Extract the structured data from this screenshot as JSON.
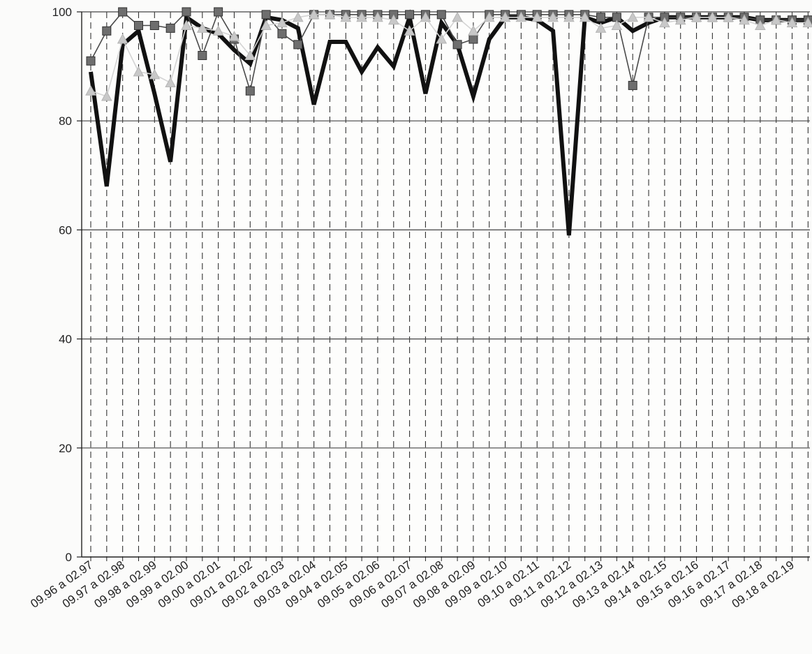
{
  "chart_data": {
    "type": "line",
    "title": "",
    "xlabel": "",
    "ylabel": "",
    "ylim": [
      0,
      100
    ],
    "yticks": [
      "0",
      "20",
      "40",
      "60",
      "80",
      "100"
    ],
    "grid": {
      "horizontal": "solid",
      "vertical": "dashed"
    },
    "x_axis_tick_labels": [
      "09.96 a 02.97",
      "09.97 a 02.98",
      "09.98 a 02.99",
      "09.99 a 02.00",
      "09.00 a 02.01",
      "09.01 a 02.02",
      "09.02 a 02.03",
      "09.03 a 02.04",
      "09.04 a 02.05",
      "09.05 a 02.06",
      "09.06 a 02.07",
      "09.07 a 02.08",
      "09.08 a 02.09",
      "09.09 a 02.10",
      "09.10 a 02.11",
      "09.11 a 02.12",
      "09.12 a 02.13",
      "09.13 a 02.14",
      "09.14 a 02.15",
      "09.15 a 02.16",
      "09.16 a 02.17",
      "09.17 a 02.18",
      "09.18 a 02.19"
    ],
    "x_points_count": 46,
    "series": [
      {
        "style": "thick-black-line",
        "color": "#111111",
        "values": [
          89,
          68,
          94,
          96.5,
          85,
          72.5,
          99,
          97,
          96,
          93,
          90.5,
          99,
          98.5,
          97,
          83,
          94.5,
          94.5,
          89,
          93.5,
          90,
          99,
          85,
          98,
          94,
          84.5,
          95,
          99,
          99,
          98.5,
          96.5,
          59,
          99,
          98,
          99,
          96.5,
          98,
          99,
          99,
          99,
          99,
          99,
          99,
          98.5,
          98.5,
          98.5,
          98.5
        ]
      },
      {
        "style": "square-markers",
        "color": "#6e6e6e",
        "values": [
          91,
          96.5,
          100,
          97.5,
          97.5,
          97,
          100,
          92,
          100,
          95,
          85.5,
          99.5,
          96,
          94,
          99.5,
          99.5,
          99.5,
          99.5,
          99.5,
          99.5,
          99.5,
          99.5,
          99.5,
          94,
          95,
          99.5,
          99.5,
          99.5,
          99.5,
          99.5,
          99.5,
          99.5,
          99,
          99,
          86.5,
          99,
          99,
          99,
          99,
          99,
          99,
          99,
          98.5,
          98.5,
          98.5,
          98.5
        ]
      },
      {
        "style": "triangle-markers",
        "color": "#c8c8c8",
        "values": [
          85.5,
          84.5,
          95,
          89,
          88.5,
          87,
          97.5,
          97,
          96.5,
          95.5,
          92,
          97.5,
          98,
          99,
          99.5,
          99.5,
          99,
          99,
          99,
          98.5,
          96.5,
          99,
          95,
          99,
          96.5,
          99,
          99,
          99,
          99,
          99,
          99,
          99,
          97,
          97.5,
          99,
          99,
          98,
          98.5,
          99,
          99,
          99,
          98.5,
          97.5,
          98.5,
          98,
          98
        ]
      }
    ]
  }
}
